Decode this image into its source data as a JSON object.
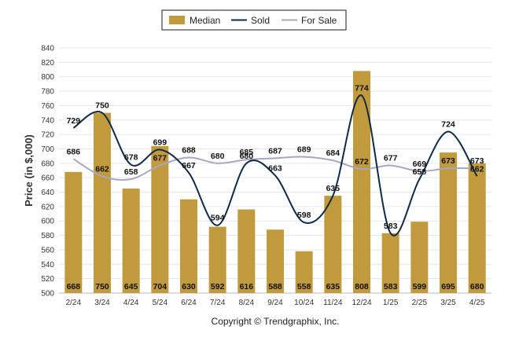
{
  "chart_data": {
    "type": "bar",
    "categories": [
      "2/24",
      "3/24",
      "4/24",
      "5/24",
      "6/24",
      "7/24",
      "8/24",
      "9/24",
      "10/24",
      "11/24",
      "12/24",
      "1/25",
      "2/25",
      "3/25",
      "4/25"
    ],
    "series": [
      {
        "name": "Median",
        "kind": "bar",
        "color": "#C29A3E",
        "values": [
          668,
          750,
          645,
          704,
          630,
          592,
          616,
          588,
          558,
          635,
          808,
          583,
          599,
          695,
          680
        ]
      },
      {
        "name": "Sold",
        "kind": "line",
        "color": "#0F2A47",
        "values": [
          729,
          750,
          678,
          699,
          667,
          594,
          680,
          663,
          598,
          635,
          774,
          583,
          658,
          724,
          662
        ]
      },
      {
        "name": "For Sale",
        "kind": "line",
        "color": "#A5A8C4",
        "values": [
          686,
          662,
          658,
          677,
          688,
          680,
          685,
          687,
          689,
          684,
          672,
          677,
          669,
          673,
          673
        ]
      }
    ],
    "ylabel": "Price (in $,000)",
    "ylim": [
      500,
      840
    ],
    "yticks": [
      500,
      520,
      540,
      560,
      580,
      600,
      620,
      640,
      660,
      680,
      700,
      720,
      740,
      760,
      780,
      800,
      820,
      840
    ],
    "grid": true,
    "legend_position": "top-center",
    "footer": "Copyright © Trendgraphix, Inc."
  }
}
